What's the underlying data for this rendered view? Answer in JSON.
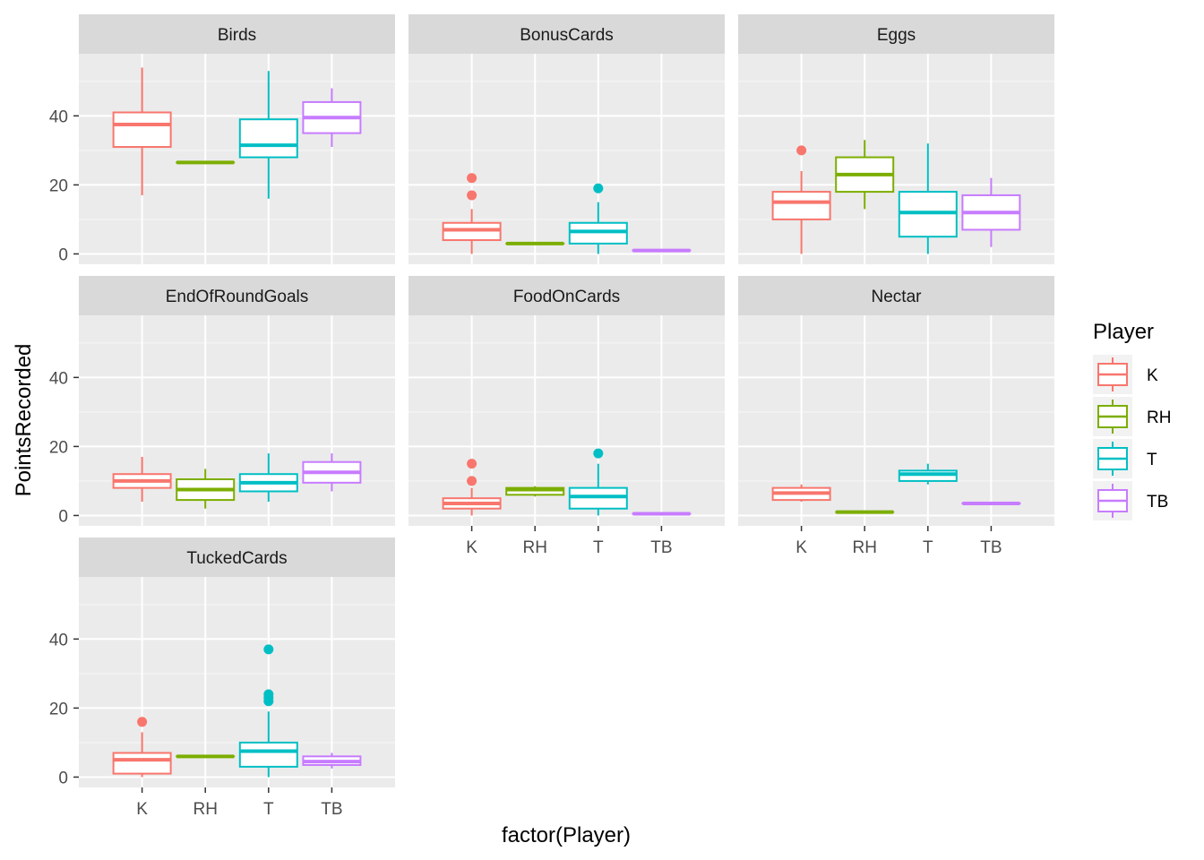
{
  "chart_data": {
    "type": "boxplot",
    "xlabel": "factor(Player)",
    "ylabel": "PointsRecorded",
    "ylim": [
      -3,
      58
    ],
    "yticks": [
      0,
      20,
      40
    ],
    "categories": [
      "K",
      "RH",
      "T",
      "TB"
    ],
    "legend": {
      "title": "Player",
      "position": "right",
      "entries": [
        "K",
        "RH",
        "T",
        "TB"
      ]
    },
    "colors": {
      "K": "#F8766D",
      "RH": "#7CAE00",
      "T": "#00BFC4",
      "TB": "#C77CFF"
    },
    "facets": [
      {
        "name": "Birds",
        "boxes": [
          {
            "player": "K",
            "lower": 17,
            "q1": 31,
            "median": 37.5,
            "q3": 41,
            "upper": 54,
            "outliers": []
          },
          {
            "player": "RH",
            "lower": 26.5,
            "q1": 26.5,
            "median": 26.5,
            "q3": 26.5,
            "upper": 26.5,
            "outliers": []
          },
          {
            "player": "T",
            "lower": 16,
            "q1": 28,
            "median": 31.5,
            "q3": 39,
            "upper": 53,
            "outliers": []
          },
          {
            "player": "TB",
            "lower": 31,
            "q1": 35,
            "median": 39.5,
            "q3": 44,
            "upper": 48,
            "outliers": []
          }
        ]
      },
      {
        "name": "BonusCards",
        "boxes": [
          {
            "player": "K",
            "lower": 0,
            "q1": 4,
            "median": 7,
            "q3": 9,
            "upper": 13,
            "outliers": [
              17,
              22
            ]
          },
          {
            "player": "RH",
            "lower": 3,
            "q1": 3,
            "median": 3,
            "q3": 3,
            "upper": 3,
            "outliers": []
          },
          {
            "player": "T",
            "lower": 0,
            "q1": 3,
            "median": 6.5,
            "q3": 9,
            "upper": 15,
            "outliers": [
              19
            ]
          },
          {
            "player": "TB",
            "lower": 1,
            "q1": 1,
            "median": 1,
            "q3": 1,
            "upper": 1,
            "outliers": []
          }
        ]
      },
      {
        "name": "Eggs",
        "boxes": [
          {
            "player": "K",
            "lower": 0,
            "q1": 10,
            "median": 15,
            "q3": 18,
            "upper": 24,
            "outliers": [
              30
            ]
          },
          {
            "player": "RH",
            "lower": 13,
            "q1": 18,
            "median": 23,
            "q3": 28,
            "upper": 33,
            "outliers": []
          },
          {
            "player": "T",
            "lower": 0,
            "q1": 5,
            "median": 12,
            "q3": 18,
            "upper": 32,
            "outliers": []
          },
          {
            "player": "TB",
            "lower": 2,
            "q1": 7,
            "median": 12,
            "q3": 17,
            "upper": 22,
            "outliers": []
          }
        ]
      },
      {
        "name": "EndOfRoundGoals",
        "boxes": [
          {
            "player": "K",
            "lower": 4,
            "q1": 8,
            "median": 10,
            "q3": 12,
            "upper": 17,
            "outliers": []
          },
          {
            "player": "RH",
            "lower": 2,
            "q1": 4.5,
            "median": 7.5,
            "q3": 10.5,
            "upper": 13.5,
            "outliers": []
          },
          {
            "player": "T",
            "lower": 4,
            "q1": 7,
            "median": 9.5,
            "q3": 12,
            "upper": 18,
            "outliers": []
          },
          {
            "player": "TB",
            "lower": 7,
            "q1": 9.5,
            "median": 12.5,
            "q3": 15.5,
            "upper": 18,
            "outliers": []
          }
        ]
      },
      {
        "name": "FoodOnCards",
        "boxes": [
          {
            "player": "K",
            "lower": 0,
            "q1": 2,
            "median": 3.5,
            "q3": 5,
            "upper": 8,
            "outliers": [
              10,
              15
            ]
          },
          {
            "player": "RH",
            "lower": 5.5,
            "q1": 6,
            "median": 7.5,
            "q3": 8,
            "upper": 8.5,
            "outliers": []
          },
          {
            "player": "T",
            "lower": 0,
            "q1": 2,
            "median": 5.5,
            "q3": 8,
            "upper": 15,
            "outliers": [
              18
            ]
          },
          {
            "player": "TB",
            "lower": 0.5,
            "q1": 0.5,
            "median": 0.5,
            "q3": 0.5,
            "upper": 0.5,
            "outliers": []
          }
        ]
      },
      {
        "name": "Nectar",
        "boxes": [
          {
            "player": "K",
            "lower": 4,
            "q1": 4.5,
            "median": 6.5,
            "q3": 8,
            "upper": 9,
            "outliers": []
          },
          {
            "player": "RH",
            "lower": 1,
            "q1": 1,
            "median": 1,
            "q3": 1,
            "upper": 1,
            "outliers": []
          },
          {
            "player": "T",
            "lower": 9,
            "q1": 10,
            "median": 12,
            "q3": 13,
            "upper": 15,
            "outliers": []
          },
          {
            "player": "TB",
            "lower": 3.5,
            "q1": 3.5,
            "median": 3.5,
            "q3": 3.5,
            "upper": 3.5,
            "outliers": []
          }
        ]
      },
      {
        "name": "TuckedCards",
        "boxes": [
          {
            "player": "K",
            "lower": 0,
            "q1": 1,
            "median": 5,
            "q3": 7,
            "upper": 13,
            "outliers": [
              16
            ]
          },
          {
            "player": "RH",
            "lower": 6,
            "q1": 6,
            "median": 6,
            "q3": 6,
            "upper": 6,
            "outliers": []
          },
          {
            "player": "T",
            "lower": 0,
            "q1": 3,
            "median": 7.5,
            "q3": 10,
            "upper": 19,
            "outliers": [
              22,
              23,
              24,
              37
            ]
          },
          {
            "player": "TB",
            "lower": 2.5,
            "q1": 3.5,
            "median": 4.5,
            "q3": 6,
            "upper": 7,
            "outliers": []
          }
        ]
      }
    ]
  }
}
